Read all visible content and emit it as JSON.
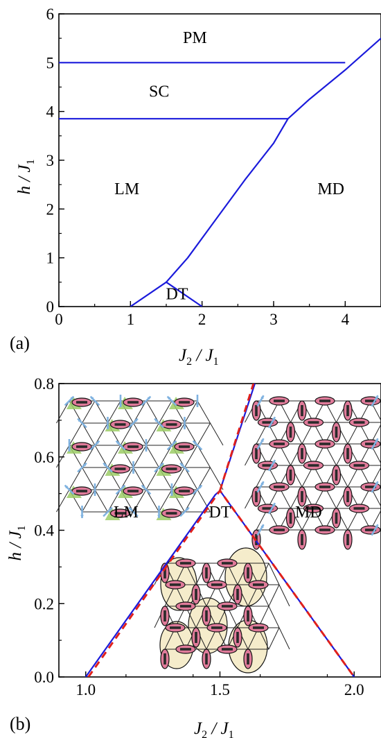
{
  "chart_data": [
    {
      "panel": "(a)",
      "type": "line",
      "xlabel": "J2 / J1",
      "ylabel": "h / J1",
      "xlim": [
        0,
        4.5
      ],
      "ylim": [
        0,
        6
      ],
      "xticks": [
        0,
        1,
        2,
        3,
        4
      ],
      "yticks": [
        0,
        1,
        2,
        3,
        4,
        5,
        6
      ],
      "x_tick_labels": [
        "0",
        "1",
        "2",
        "3",
        "4"
      ],
      "y_tick_labels": [
        "0",
        "1",
        "2",
        "3",
        "4",
        "5",
        "6"
      ],
      "line_color": "#1a1adb",
      "series": [
        {
          "points": [
            [
              0,
              5.0
            ],
            [
              4.0,
              5.0
            ]
          ]
        },
        {
          "points": [
            [
              0,
              3.85
            ],
            [
              3.2,
              3.85
            ]
          ]
        },
        {
          "points": [
            [
              1.0,
              0
            ],
            [
              1.5,
              0.5
            ]
          ]
        },
        {
          "points": [
            [
              1.5,
              0.5
            ],
            [
              2.0,
              0
            ]
          ]
        },
        {
          "points": [
            [
              1.5,
              0.5
            ],
            [
              1.8,
              1.0
            ],
            [
              2.2,
              1.8
            ],
            [
              2.6,
              2.6
            ],
            [
              3.0,
              3.35
            ],
            [
              3.2,
              3.85
            ],
            [
              3.5,
              4.25
            ],
            [
              4.0,
              4.85
            ],
            [
              4.5,
              5.5
            ]
          ]
        }
      ],
      "regions": [
        {
          "label": "PM",
          "x": 1.9,
          "y": 5.4
        },
        {
          "label": "SC",
          "x": 1.4,
          "y": 4.3
        },
        {
          "label": "LM",
          "x": 0.95,
          "y": 2.3
        },
        {
          "label": "MD",
          "x": 3.8,
          "y": 2.3
        },
        {
          "label": "DT",
          "x": 1.65,
          "y": 0.15
        }
      ]
    },
    {
      "panel": "(b)",
      "type": "line",
      "xlabel": "J2 / J1",
      "ylabel": "h / J1",
      "xlim": [
        0.9,
        2.1
      ],
      "ylim": [
        0.0,
        0.8
      ],
      "xticks": [
        1.0,
        1.5,
        2.0
      ],
      "yticks": [
        0.0,
        0.2,
        0.4,
        0.6,
        0.8
      ],
      "x_tick_labels": [
        "1.0",
        "1.5",
        "2.0"
      ],
      "y_tick_labels": [
        "0.0",
        "0.2",
        "0.4",
        "0.6",
        "0.8"
      ],
      "series": [
        {
          "style": "solid",
          "color": "#1a1adb",
          "points": [
            [
              1.0,
              0.0
            ],
            [
              1.483,
              0.497
            ],
            [
              1.5,
              0.508
            ],
            [
              2.0,
              0.0
            ]
          ]
        },
        {
          "style": "solid",
          "color": "#1a1adb",
          "points": [
            [
              1.5,
              0.508
            ],
            [
              1.63,
              0.8
            ]
          ]
        },
        {
          "style": "dashed",
          "color": "#e0201c",
          "points": [
            [
              1.01,
              0.0
            ],
            [
              1.5,
              0.508
            ],
            [
              2.0,
              0.0
            ]
          ]
        },
        {
          "style": "dashed",
          "color": "#e0201c",
          "points": [
            [
              1.5,
              0.508
            ],
            [
              1.625,
              0.8
            ]
          ]
        }
      ],
      "regions": [
        {
          "label": "LM",
          "x": 1.15,
          "y": 0.435
        },
        {
          "label": "DT",
          "x": 1.5,
          "y": 0.435
        },
        {
          "label": "MD",
          "x": 1.83,
          "y": 0.435
        }
      ],
      "insets": [
        "LM-lattice",
        "MD-lattice",
        "DT-lattice"
      ]
    }
  ],
  "colors": {
    "axis": "#000000",
    "lattice_line": "#222222",
    "dimer_fill": "#e07b9a",
    "dimer_bar": "#2a2a2a",
    "spin_blue": "#7fb2e0",
    "spin_green": "#9ccc66",
    "trimer_fill": "#f5eccb"
  }
}
